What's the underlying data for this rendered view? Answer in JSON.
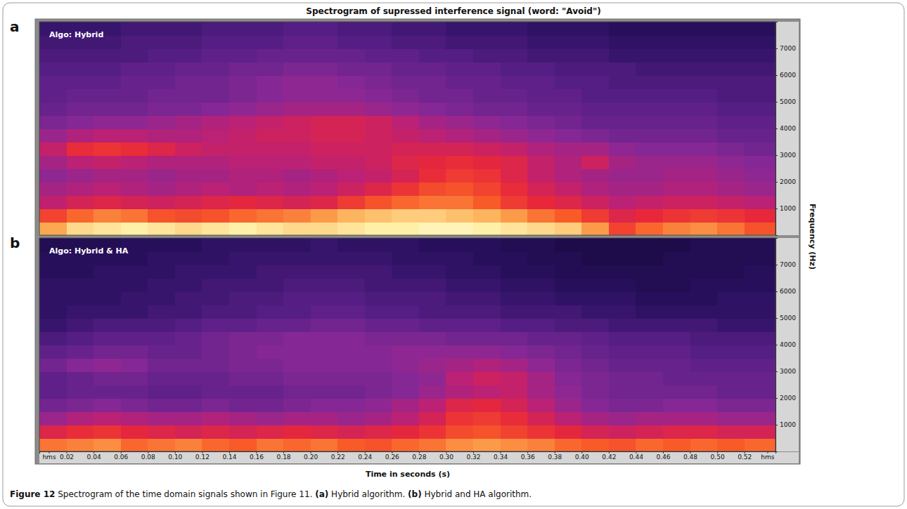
{
  "title": "Spectrogram of supressed interference signal (word: \"Avoid\")",
  "xlabel": "Time in seconds (s)",
  "ylabel": "Frequency (Hz)",
  "caption": [
    "Figure 12",
    " Spectrogram of the time domain signals shown in Figure 11. ",
    "(a)",
    " Hybrid algorithm. ",
    "(b)",
    " Hybrid and HA algorithm."
  ],
  "chart_data": [
    {
      "type": "heatmap",
      "panel": "a",
      "subtitle": "Algo: Hybrid",
      "x": [
        0,
        0.02,
        0.04,
        0.06,
        0.08,
        0.1,
        0.12,
        0.14,
        0.16,
        0.18,
        0.2,
        0.22,
        0.24,
        0.26,
        0.28,
        0.3,
        0.32,
        0.34,
        0.36,
        0.38,
        0.4,
        0.42,
        0.44,
        0.46,
        0.48,
        0.5,
        0.52
      ],
      "y": [
        0,
        500,
        1000,
        1500,
        2000,
        2500,
        3000,
        3500,
        4000,
        4500,
        5000,
        5500,
        6000,
        6500,
        7000,
        7500
      ],
      "z": [
        [
          80,
          88,
          90,
          92,
          90,
          88,
          90,
          92,
          90,
          88,
          88,
          90,
          92,
          92,
          94,
          94,
          92,
          90,
          88,
          86,
          78,
          62,
          70,
          74,
          76,
          72,
          66
        ],
        [
          62,
          70,
          74,
          72,
          66,
          64,
          66,
          70,
          72,
          74,
          78,
          82,
          84,
          86,
          86,
          84,
          82,
          78,
          72,
          68,
          60,
          52,
          55,
          58,
          60,
          58,
          55
        ],
        [
          45,
          50,
          52,
          50,
          48,
          50,
          52,
          54,
          52,
          50,
          52,
          60,
          66,
          70,
          72,
          72,
          68,
          60,
          55,
          52,
          48,
          44,
          46,
          48,
          48,
          46,
          44
        ],
        [
          40,
          42,
          44,
          42,
          40,
          42,
          44,
          42,
          44,
          42,
          44,
          48,
          52,
          58,
          64,
          66,
          62,
          56,
          50,
          46,
          42,
          40,
          40,
          42,
          42,
          40,
          38
        ],
        [
          36,
          38,
          40,
          40,
          38,
          40,
          40,
          42,
          42,
          40,
          42,
          44,
          46,
          50,
          56,
          60,
          58,
          52,
          46,
          42,
          40,
          38,
          38,
          40,
          40,
          38,
          36
        ],
        [
          40,
          44,
          46,
          44,
          42,
          42,
          42,
          44,
          44,
          44,
          46,
          46,
          48,
          52,
          54,
          56,
          54,
          52,
          46,
          42,
          48,
          40,
          38,
          38,
          38,
          36,
          34
        ],
        [
          46,
          56,
          58,
          56,
          52,
          48,
          46,
          46,
          46,
          46,
          48,
          48,
          48,
          50,
          50,
          50,
          48,
          46,
          42,
          40,
          40,
          36,
          34,
          34,
          34,
          32,
          30
        ],
        [
          38,
          42,
          44,
          44,
          42,
          42,
          44,
          46,
          48,
          48,
          50,
          50,
          48,
          46,
          44,
          42,
          40,
          38,
          36,
          34,
          32,
          30,
          30,
          30,
          30,
          28,
          28
        ],
        [
          32,
          34,
          36,
          36,
          38,
          40,
          42,
          44,
          46,
          48,
          50,
          50,
          48,
          44,
          40,
          38,
          36,
          34,
          32,
          30,
          28,
          28,
          28,
          28,
          28,
          26,
          26
        ],
        [
          28,
          30,
          30,
          30,
          32,
          32,
          34,
          36,
          38,
          40,
          40,
          40,
          38,
          36,
          34,
          32,
          30,
          30,
          28,
          28,
          26,
          26,
          26,
          26,
          26,
          24,
          24
        ],
        [
          26,
          28,
          28,
          28,
          30,
          30,
          30,
          32,
          34,
          36,
          36,
          36,
          34,
          32,
          30,
          30,
          28,
          28,
          26,
          26,
          24,
          24,
          24,
          24,
          24,
          22,
          22
        ],
        [
          26,
          26,
          26,
          28,
          28,
          30,
          30,
          32,
          34,
          36,
          36,
          34,
          32,
          30,
          30,
          28,
          28,
          26,
          26,
          24,
          24,
          22,
          22,
          22,
          22,
          22,
          22
        ],
        [
          24,
          24,
          24,
          26,
          26,
          28,
          28,
          30,
          30,
          32,
          32,
          30,
          30,
          28,
          28,
          26,
          26,
          24,
          24,
          22,
          22,
          22,
          20,
          20,
          20,
          20,
          20
        ],
        [
          22,
          22,
          22,
          22,
          24,
          24,
          26,
          26,
          28,
          28,
          28,
          28,
          26,
          26,
          24,
          24,
          22,
          22,
          20,
          20,
          20,
          18,
          18,
          18,
          18,
          18,
          18
        ],
        [
          20,
          20,
          20,
          22,
          22,
          22,
          24,
          24,
          24,
          26,
          26,
          24,
          24,
          22,
          22,
          20,
          20,
          20,
          18,
          18,
          18,
          16,
          16,
          16,
          16,
          16,
          16
        ],
        [
          18,
          18,
          18,
          20,
          20,
          20,
          22,
          22,
          22,
          24,
          24,
          22,
          22,
          20,
          20,
          18,
          18,
          18,
          16,
          16,
          16,
          14,
          14,
          14,
          14,
          14,
          14
        ]
      ],
      "color_range": [
        0,
        100
      ],
      "xlim": [
        0,
        0.543
      ],
      "ylim": [
        0,
        8000
      ],
      "yticks": [
        1000,
        2000,
        3000,
        4000,
        5000,
        6000,
        7000
      ],
      "tick_labels": "y"
    },
    {
      "type": "heatmap",
      "panel": "b",
      "subtitle": "Algo: Hybrid & HA",
      "x": [
        0,
        0.02,
        0.04,
        0.06,
        0.08,
        0.1,
        0.12,
        0.14,
        0.16,
        0.18,
        0.2,
        0.22,
        0.24,
        0.26,
        0.28,
        0.3,
        0.32,
        0.34,
        0.36,
        0.38,
        0.4,
        0.42,
        0.44,
        0.46,
        0.48,
        0.5,
        0.52
      ],
      "y": [
        0,
        500,
        1000,
        1500,
        2000,
        2500,
        3000,
        3500,
        4000,
        4500,
        5000,
        5500,
        6000,
        6500,
        7000,
        7500
      ],
      "z": [
        [
          72,
          74,
          76,
          70,
          72,
          74,
          70,
          68,
          72,
          70,
          72,
          68,
          66,
          70,
          72,
          76,
          78,
          76,
          74,
          70,
          68,
          66,
          70,
          68,
          70,
          68,
          70
        ],
        [
          52,
          56,
          58,
          54,
          52,
          50,
          52,
          50,
          52,
          54,
          52,
          50,
          52,
          54,
          58,
          64,
          66,
          62,
          58,
          54,
          50,
          48,
          50,
          52,
          52,
          50,
          50
        ],
        [
          38,
          42,
          44,
          42,
          40,
          40,
          42,
          40,
          38,
          40,
          40,
          38,
          40,
          44,
          50,
          58,
          60,
          56,
          50,
          44,
          40,
          38,
          40,
          40,
          40,
          38,
          38
        ],
        [
          30,
          32,
          34,
          32,
          30,
          30,
          32,
          30,
          30,
          32,
          34,
          34,
          36,
          40,
          44,
          52,
          54,
          50,
          44,
          38,
          34,
          32,
          32,
          34,
          34,
          32,
          32
        ],
        [
          26,
          28,
          28,
          28,
          26,
          26,
          28,
          28,
          28,
          30,
          30,
          30,
          32,
          34,
          38,
          42,
          44,
          46,
          40,
          36,
          32,
          30,
          30,
          30,
          30,
          28,
          28
        ],
        [
          26,
          28,
          30,
          30,
          28,
          28,
          28,
          30,
          30,
          32,
          32,
          32,
          32,
          34,
          36,
          44,
          48,
          46,
          40,
          34,
          32,
          30,
          30,
          28,
          28,
          28,
          28
        ],
        [
          30,
          34,
          36,
          34,
          30,
          30,
          30,
          32,
          32,
          34,
          34,
          34,
          34,
          36,
          38,
          40,
          42,
          40,
          36,
          32,
          30,
          28,
          28,
          28,
          26,
          26,
          26
        ],
        [
          26,
          28,
          30,
          30,
          28,
          28,
          30,
          32,
          34,
          34,
          34,
          34,
          34,
          36,
          36,
          36,
          36,
          34,
          32,
          30,
          28,
          26,
          26,
          26,
          24,
          24,
          24
        ],
        [
          22,
          24,
          26,
          26,
          26,
          28,
          30,
          32,
          32,
          34,
          34,
          34,
          32,
          32,
          32,
          30,
          30,
          30,
          28,
          28,
          26,
          24,
          24,
          24,
          22,
          22,
          22
        ],
        [
          18,
          20,
          22,
          22,
          22,
          24,
          26,
          26,
          28,
          28,
          30,
          30,
          28,
          28,
          26,
          26,
          26,
          24,
          24,
          22,
          22,
          20,
          20,
          20,
          20,
          18,
          18
        ],
        [
          16,
          18,
          18,
          18,
          20,
          20,
          22,
          22,
          24,
          24,
          26,
          26,
          24,
          24,
          22,
          22,
          22,
          20,
          20,
          20,
          18,
          18,
          16,
          16,
          16,
          16,
          16
        ],
        [
          16,
          16,
          16,
          18,
          18,
          20,
          20,
          22,
          22,
          24,
          24,
          24,
          22,
          22,
          22,
          20,
          20,
          18,
          18,
          16,
          16,
          16,
          14,
          14,
          14,
          16,
          16
        ],
        [
          16,
          16,
          16,
          16,
          18,
          18,
          20,
          20,
          20,
          22,
          22,
          22,
          20,
          20,
          20,
          18,
          18,
          16,
          16,
          14,
          14,
          14,
          12,
          12,
          14,
          14,
          14
        ],
        [
          14,
          14,
          16,
          16,
          16,
          18,
          18,
          18,
          20,
          20,
          20,
          20,
          20,
          18,
          18,
          16,
          16,
          14,
          14,
          12,
          12,
          12,
          12,
          12,
          12,
          12,
          14
        ],
        [
          14,
          14,
          14,
          14,
          16,
          16,
          16,
          18,
          18,
          18,
          18,
          18,
          18,
          16,
          16,
          16,
          14,
          14,
          12,
          12,
          10,
          10,
          10,
          12,
          12,
          12,
          12
        ],
        [
          12,
          12,
          12,
          14,
          14,
          14,
          16,
          16,
          16,
          16,
          18,
          16,
          16,
          16,
          14,
          14,
          14,
          12,
          12,
          10,
          10,
          10,
          10,
          10,
          12,
          12,
          12
        ]
      ],
      "color_range": [
        0,
        100
      ],
      "xlim": [
        0,
        0.543
      ],
      "ylim": [
        0,
        8000
      ],
      "xticks": [
        {
          "value": 0.007,
          "label": "hms"
        },
        0.02,
        0.04,
        0.06,
        0.08,
        {
          "value": 0.1,
          "label": "0.10"
        },
        0.12,
        0.14,
        0.16,
        0.18,
        {
          "value": 0.2,
          "label": "0.20"
        },
        0.22,
        0.24,
        0.26,
        0.28,
        {
          "value": 0.3,
          "label": "0.30"
        },
        0.32,
        0.34,
        0.36,
        0.38,
        {
          "value": 0.4,
          "label": "0.40"
        },
        0.42,
        0.44,
        0.46,
        0.48,
        {
          "value": 0.5,
          "label": "0.50"
        },
        0.52,
        {
          "value": 0.537,
          "label": "hms"
        }
      ],
      "yticks": [
        1000,
        2000,
        3000,
        4000,
        5000,
        6000,
        7000
      ]
    }
  ]
}
